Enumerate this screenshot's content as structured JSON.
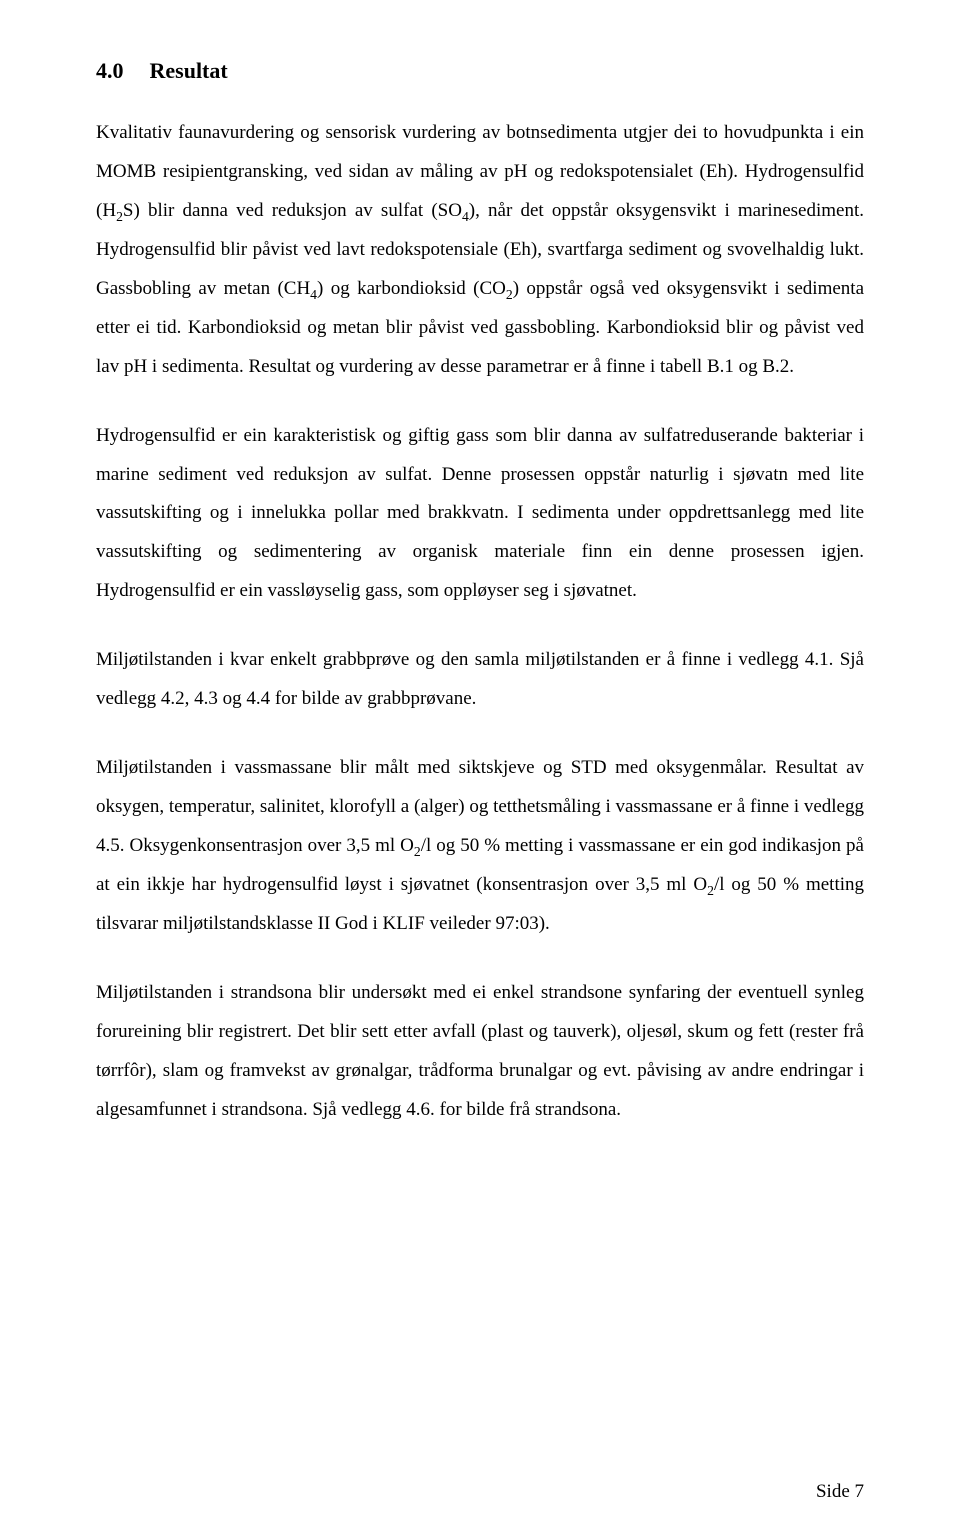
{
  "heading": {
    "number": "4.0",
    "title": "Resultat"
  },
  "paragraphs": {
    "p1": {
      "t1": "Kvalitativ faunavurdering og sensorisk vurdering av botnsedimenta utgjer dei to hovudpunkta i ein MOMB resipientgransking, ved sidan av måling av pH og redokspotensialet (Eh). Hydrogensulfid (H",
      "s1": "2",
      "t2": "S) blir danna ved reduksjon av sulfat (SO",
      "s2": "4",
      "t3": "), når det oppstår oksygensvikt i marinesediment. Hydrogensulfid blir påvist ved lavt redokspotensiale (Eh), svartfarga sediment og svovelhaldig lukt. Gassbobling av metan (CH",
      "s3": "4",
      "t4": ") og karbondioksid (CO",
      "s4": "2",
      "t5": ") oppstår også ved oksygensvikt i sedimenta etter ei tid. Karbondioksid og metan blir påvist ved gassbobling. Karbondioksid blir og påvist ved lav pH i sedimenta. Resultat og vurdering av desse parametrar er å finne i tabell B.1 og B.2."
    },
    "p2": "Hydrogensulfid er ein karakteristisk og giftig gass som blir danna av sulfatreduserande bakteriar i marine sediment ved reduksjon av sulfat. Denne prosessen oppstår naturlig i sjøvatn med lite vassutskifting og i innelukka pollar med brakkvatn. I sedimenta under oppdrettsanlegg med lite vassutskifting og sedimentering av organisk materiale finn ein denne prosessen igjen. Hydrogensulfid er ein vassløyselig gass, som oppløyser seg i sjøvatnet.",
    "p3": "Miljøtilstanden i kvar enkelt grabbprøve og den samla miljøtilstanden er å finne i vedlegg 4.1. Sjå vedlegg 4.2, 4.3 og 4.4 for bilde av grabbprøvane.",
    "p4": {
      "t1": "Miljøtilstanden i vassmassane blir målt med siktskjeve og STD med oksygenmålar. Resultat av oksygen, temperatur, salinitet, klorofyll a (alger) og tetthetsmåling i vassmassane er å finne i vedlegg 4.5. Oksygenkonsentrasjon over 3,5 ml O",
      "s1": "2",
      "t2": "/l og 50 % metting i vassmassane er ein god indikasjon på at ein ikkje har hydrogensulfid løyst i sjøvatnet (konsentrasjon over 3,5 ml O",
      "s2": "2",
      "t3": "/l og 50 % metting tilsvarar miljøtilstandsklasse II God i KLIF veileder 97:03)."
    },
    "p5": "Miljøtilstanden i strandsona blir undersøkt med ei enkel strandsone synfaring der eventuell synleg forureining blir registrert. Det blir sett etter avfall (plast og tauverk), oljesøl, skum og fett (rester frå tørrfôr), slam og framvekst av grønalgar, trådforma brunalgar og evt. påvising av andre endringar i algesamfunnet i strandsona. Sjå vedlegg 4.6. for bilde frå strandsona."
  },
  "pageNumber": "Side 7"
}
